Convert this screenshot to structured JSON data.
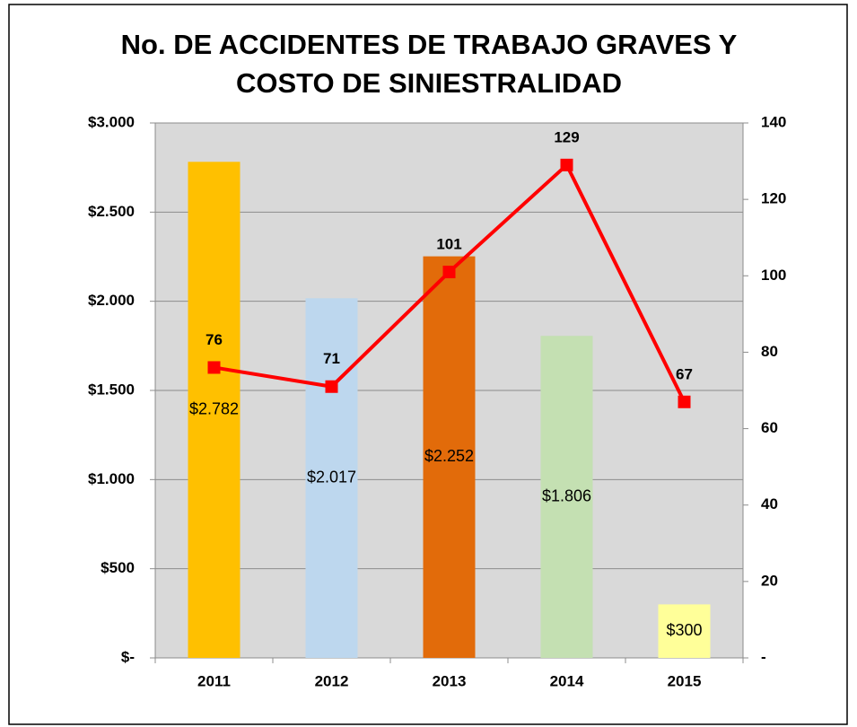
{
  "chart_data": {
    "type": "combo",
    "title": [
      "No. DE ACCIDENTES DE TRABAJO GRAVES Y",
      "COSTO DE SINIESTRALIDAD"
    ],
    "categories": [
      "2011",
      "2012",
      "2013",
      "2014",
      "2015"
    ],
    "series": [
      {
        "type": "bar",
        "colors": [
          "#ffc000",
          "#bdd7ee",
          "#e26b0a",
          "#c4e0b2",
          "#ffff99"
        ],
        "values": [
          2782,
          2017,
          2252,
          1806,
          300
        ],
        "value_labels": [
          "$2.782",
          "$2.017",
          "$2.252",
          "$1.806",
          "$300"
        ]
      },
      {
        "type": "line",
        "axis": "y2",
        "color": "#ff0000",
        "values": [
          76,
          71,
          101,
          129,
          67
        ]
      }
    ],
    "ylim": [
      0,
      3000
    ],
    "yticks": [
      {
        "value": 0,
        "label": "$-"
      },
      {
        "value": 500,
        "label": "$500"
      },
      {
        "value": 1000,
        "label": "$1.000"
      },
      {
        "value": 1500,
        "label": "$1.500"
      },
      {
        "value": 2000,
        "label": "$2.000"
      },
      {
        "value": 2500,
        "label": "$2.500"
      },
      {
        "value": 3000,
        "label": "$3.000"
      }
    ],
    "y2lim": [
      0,
      140
    ],
    "y2ticks": [
      {
        "value": 0,
        "label": "-"
      },
      20,
      40,
      60,
      80,
      100,
      120,
      140
    ],
    "grid": true
  }
}
